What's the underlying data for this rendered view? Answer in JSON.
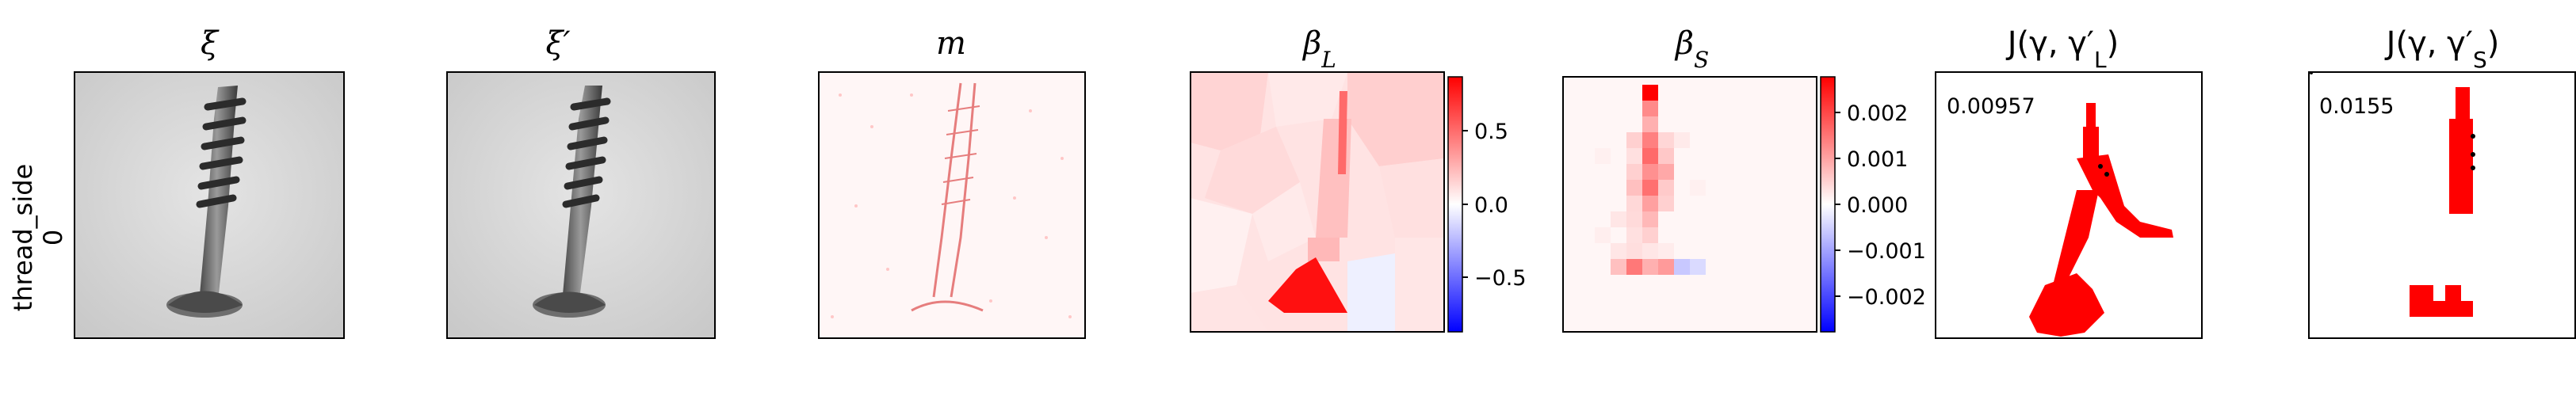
{
  "row": {
    "label_line1": "thread_side",
    "label_line2": "0"
  },
  "panels": {
    "xi": {
      "title": "ξ"
    },
    "xi_prime": {
      "title": "ξ′"
    },
    "m": {
      "title": "m"
    },
    "beta_l": {
      "title": "β",
      "title_sub": "L",
      "colorbar_ticks": [
        "0.5",
        "0.0",
        "−0.5"
      ]
    },
    "beta_s": {
      "title": "β",
      "title_sub": "S",
      "colorbar_ticks": [
        "0.002",
        "0.001",
        "0.000",
        "−0.001",
        "−0.002"
      ]
    },
    "j_l": {
      "title": "J(γ, γ′",
      "title_sub": "L",
      "title_end": ")",
      "score": "0.00957"
    },
    "j_s": {
      "title": "J(γ, γ′",
      "title_sub": "S",
      "title_end": ")",
      "score": "0.0155"
    }
  },
  "colors": {
    "pos": "#ff0000",
    "neg": "#0000ff",
    "grayscale_bg": "#d8d8d8"
  }
}
